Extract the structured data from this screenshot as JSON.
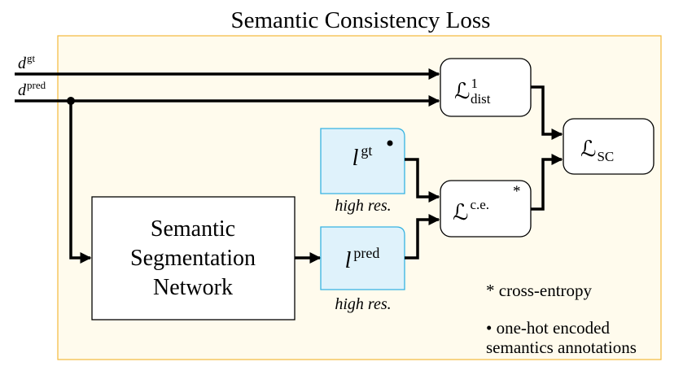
{
  "title": "Semantic Consistency Loss",
  "inputs": {
    "d_gt": {
      "base": "d",
      "sup": "gt"
    },
    "d_pred": {
      "base": "d",
      "sup": "pred"
    }
  },
  "network": {
    "line1": "Semantic",
    "line2": "Segmentation",
    "line3": "Network"
  },
  "labels": {
    "l_gt": {
      "base": "l",
      "sup": "gt"
    },
    "l_pred": {
      "base": "l",
      "sup": "pred"
    },
    "l_gt_caption": "high res.",
    "l_pred_caption": "high res."
  },
  "losses": {
    "dist": {
      "base": "ℒ",
      "sup": "1",
      "sub": "dist"
    },
    "ce": {
      "base": "ℒ",
      "sup": "c.e.",
      "mark": "*"
    },
    "sc": {
      "base": "ℒ",
      "sub": "SC"
    }
  },
  "legend": {
    "ce_note": "* cross-entropy",
    "onehot_line1": "• one-hot encoded",
    "onehot_line2": "semantics annotations"
  },
  "colors": {
    "panel_fill": "#fffbed",
    "panel_border": "#f2b93b",
    "label_fill": "#dff2fb",
    "label_border": "#36b3e2",
    "ink": "#000000"
  }
}
